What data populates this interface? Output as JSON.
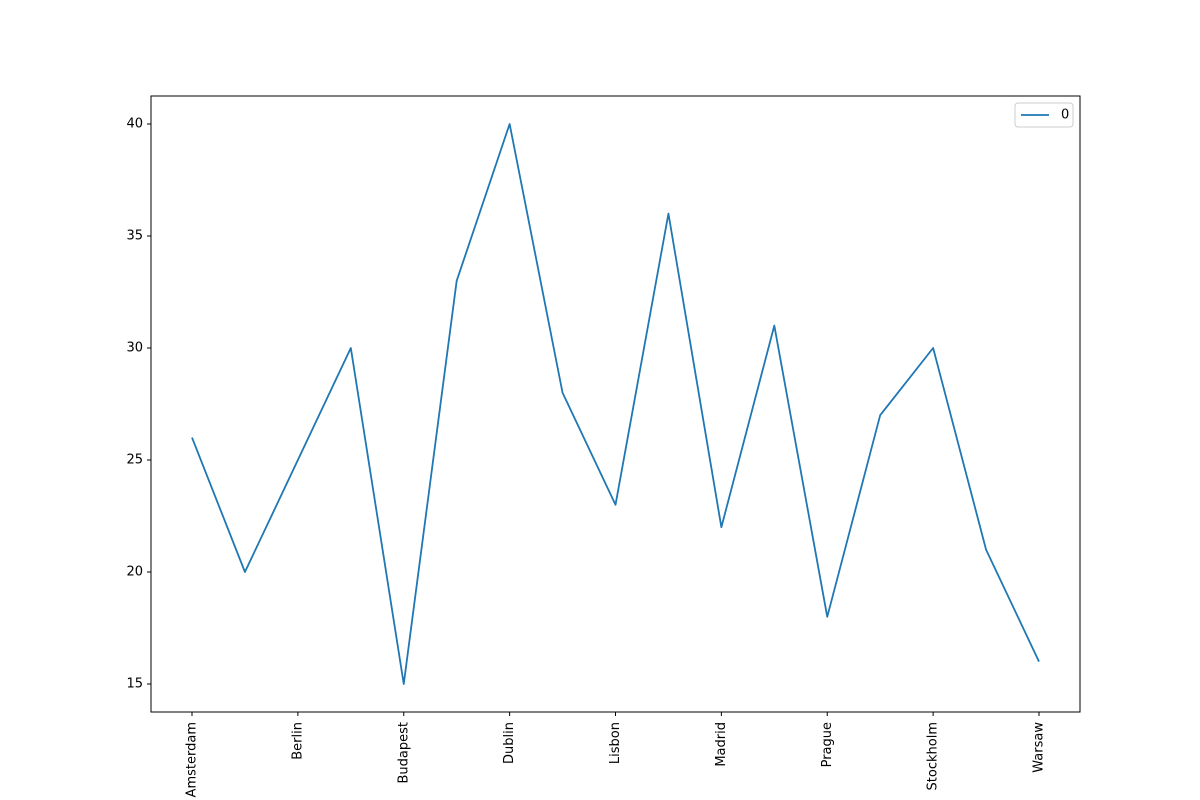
{
  "chart_data": {
    "type": "line",
    "categories": [
      "Amsterdam",
      null,
      "Berlin",
      null,
      "Budapest",
      null,
      "Dublin",
      null,
      "Lisbon",
      null,
      "Madrid",
      null,
      "Prague",
      null,
      "Stockholm",
      null,
      "Warsaw"
    ],
    "series": [
      {
        "name": "0",
        "color": "#1f77b4",
        "values": [
          26,
          20,
          25,
          30,
          15,
          33,
          40,
          28,
          23,
          36,
          22,
          31,
          18,
          27,
          30,
          21,
          16
        ]
      }
    ],
    "ylim": [
      13.75,
      41.25
    ],
    "yticks": [
      15,
      20,
      25,
      30,
      35,
      40
    ],
    "legend": "upper right",
    "grid": false
  }
}
